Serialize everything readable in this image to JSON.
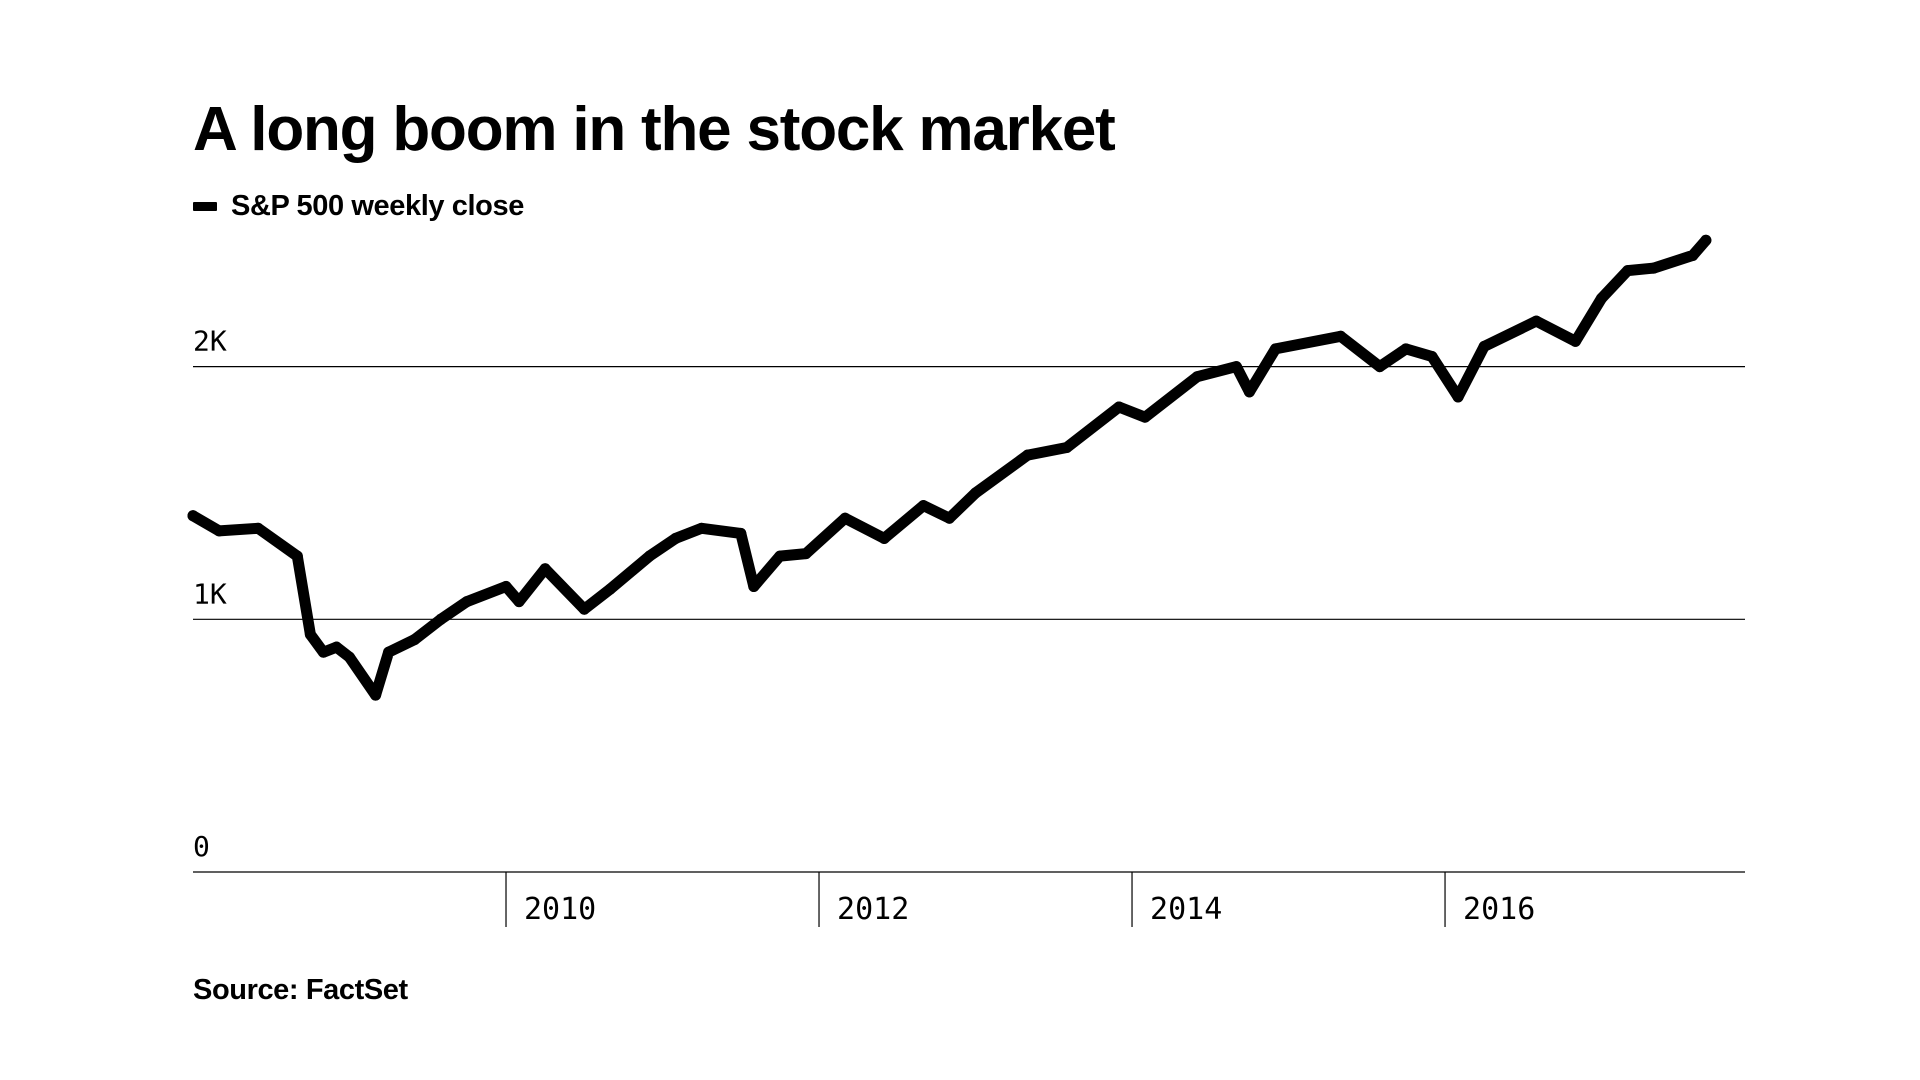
{
  "chart_data": {
    "type": "line",
    "title": "A long boom in the stock market",
    "series": [
      {
        "name": "S&P 500 weekly close",
        "color": "#000000",
        "x": [
          "2008-01",
          "2008-03",
          "2008-06",
          "2008-09",
          "2008-10",
          "2008-11",
          "2008-12",
          "2009-01",
          "2009-03",
          "2009-04",
          "2009-06",
          "2009-08",
          "2009-10",
          "2010-01",
          "2010-02",
          "2010-04",
          "2010-07",
          "2010-09",
          "2010-12",
          "2011-02",
          "2011-04",
          "2011-07",
          "2011-08",
          "2011-10",
          "2011-12",
          "2012-03",
          "2012-06",
          "2012-09",
          "2012-11",
          "2013-01",
          "2013-05",
          "2013-08",
          "2013-12",
          "2014-02",
          "2014-06",
          "2014-09",
          "2014-10",
          "2014-12",
          "2015-05",
          "2015-08",
          "2015-10",
          "2015-12",
          "2016-02",
          "2016-04",
          "2016-08",
          "2016-11",
          "2017-01",
          "2017-03",
          "2017-05",
          "2017-08",
          "2017-09"
        ],
        "y": [
          1410,
          1350,
          1360,
          1250,
          940,
          870,
          890,
          850,
          700,
          870,
          920,
          1000,
          1070,
          1130,
          1070,
          1200,
          1040,
          1120,
          1250,
          1320,
          1360,
          1340,
          1130,
          1250,
          1260,
          1400,
          1320,
          1450,
          1400,
          1500,
          1650,
          1680,
          1840,
          1800,
          1960,
          2000,
          1900,
          2070,
          2120,
          2000,
          2070,
          2040,
          1880,
          2080,
          2180,
          2100,
          2270,
          2380,
          2390,
          2440,
          2500
        ]
      }
    ],
    "ylim": [
      0,
      2600
    ],
    "yticks": [
      0,
      1000,
      2000
    ],
    "ytick_labels": [
      "0",
      "1K",
      "2K"
    ],
    "xlim": [
      "2008-01",
      "2017-12"
    ],
    "xticks": [
      "2010-01",
      "2012-01",
      "2014-01",
      "2016-01"
    ],
    "xtick_labels": [
      "2010",
      "2012",
      "2014",
      "2016"
    ],
    "grid": true,
    "legend_position": "top-left",
    "xlabel": "",
    "ylabel": ""
  },
  "source": "Source: FactSet"
}
